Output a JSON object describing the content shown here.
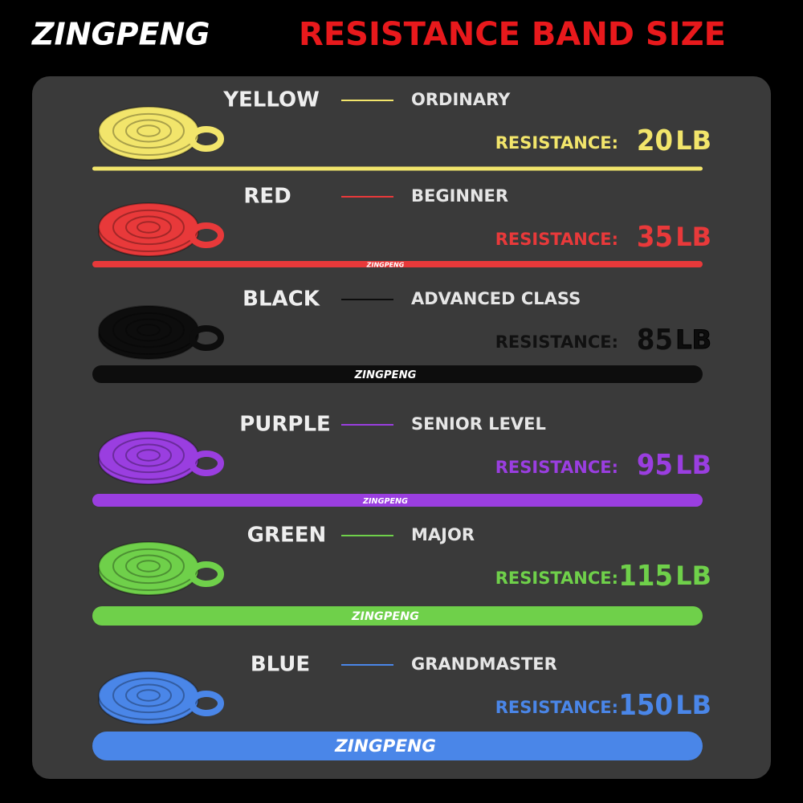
{
  "brand": "ZINGPENG",
  "title": "RESISTANCE BAND SIZE",
  "rows": [
    {
      "color_name": "YELLOW",
      "level": "ORDINARY",
      "label": "RESISTANCE:",
      "value": 20,
      "unit": "LB",
      "color": "#f2e56b"
    },
    {
      "color_name": "RED",
      "level": "BEGINNER",
      "label": "RESISTANCE:",
      "value": 35,
      "unit": "LB",
      "color": "#e8393a"
    },
    {
      "color_name": "BLACK",
      "level": "ADVANCED CLASS",
      "label": "RESISTANCE:",
      "value": 85,
      "unit": "LB",
      "color": "#0d0d0d"
    },
    {
      "color_name": "PURPLE",
      "level": "SENIOR LEVEL",
      "label": "RESISTANCE:",
      "value": 95,
      "unit": "LB",
      "color": "#9a3ee0"
    },
    {
      "color_name": "GREEN",
      "level": "MAJOR",
      "label": "RESISTANCE:",
      "value": 115,
      "unit": "LB",
      "color": "#6fd04a"
    },
    {
      "color_name": "BLUE",
      "level": "GRANDMASTER",
      "label": "RESISTANCE:",
      "value": 150,
      "unit": "LB",
      "color": "#4a86e8"
    }
  ]
}
